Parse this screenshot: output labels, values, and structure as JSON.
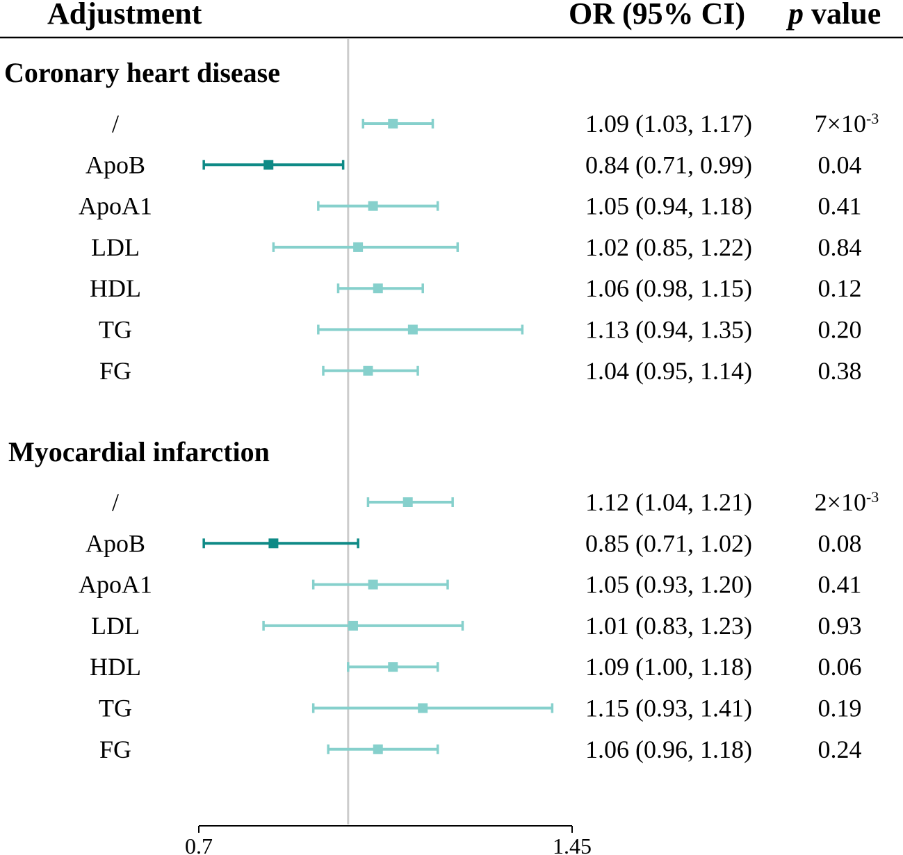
{
  "chart_data": {
    "type": "forest",
    "header": {
      "adjustment": "Adjustment",
      "or_ci": "OR (95% CI)",
      "p_italic": "p",
      "p_rest": " value"
    },
    "xlim": [
      0.7,
      1.45
    ],
    "reference_line": 1.0,
    "x_ticks": [
      "0.7",
      "1.45"
    ],
    "colors": {
      "significant": "#0e8a86",
      "nonsignificant": "#86d0cc",
      "reference": "#cccccc",
      "rule": "#000000"
    },
    "groups": [
      {
        "title": "Coronary heart disease",
        "rows": [
          {
            "label": "/",
            "or": 1.09,
            "lo": 1.03,
            "hi": 1.17,
            "ci_text": "1.09 (1.03, 1.17)",
            "p_base": "7×10",
            "p_exp": "-3",
            "significant": false
          },
          {
            "label": "ApoB",
            "or": 0.84,
            "lo": 0.71,
            "hi": 0.99,
            "ci_text": "0.84 (0.71, 0.99)",
            "p_base": "0.04",
            "p_exp": "",
            "significant": true
          },
          {
            "label": "ApoA1",
            "or": 1.05,
            "lo": 0.94,
            "hi": 1.18,
            "ci_text": "1.05 (0.94, 1.18)",
            "p_base": "0.41",
            "p_exp": "",
            "significant": false
          },
          {
            "label": "LDL",
            "or": 1.02,
            "lo": 0.85,
            "hi": 1.22,
            "ci_text": "1.02 (0.85, 1.22)",
            "p_base": "0.84",
            "p_exp": "",
            "significant": false
          },
          {
            "label": "HDL",
            "or": 1.06,
            "lo": 0.98,
            "hi": 1.15,
            "ci_text": "1.06 (0.98, 1.15)",
            "p_base": "0.12",
            "p_exp": "",
            "significant": false
          },
          {
            "label": "TG",
            "or": 1.13,
            "lo": 0.94,
            "hi": 1.35,
            "ci_text": "1.13 (0.94, 1.35)",
            "p_base": "0.20",
            "p_exp": "",
            "significant": false
          },
          {
            "label": "FG",
            "or": 1.04,
            "lo": 0.95,
            "hi": 1.14,
            "ci_text": "1.04 (0.95, 1.14)",
            "p_base": "0.38",
            "p_exp": "",
            "significant": false
          }
        ]
      },
      {
        "title": "Myocardial infarction",
        "rows": [
          {
            "label": "/",
            "or": 1.12,
            "lo": 1.04,
            "hi": 1.21,
            "ci_text": "1.12 (1.04, 1.21)",
            "p_base": "2×10",
            "p_exp": "-3",
            "significant": false
          },
          {
            "label": "ApoB",
            "or": 0.85,
            "lo": 0.71,
            "hi": 1.02,
            "ci_text": "0.85 (0.71, 1.02)",
            "p_base": "0.08",
            "p_exp": "",
            "significant": true
          },
          {
            "label": "ApoA1",
            "or": 1.05,
            "lo": 0.93,
            "hi": 1.2,
            "ci_text": "1.05 (0.93, 1.20)",
            "p_base": "0.41",
            "p_exp": "",
            "significant": false
          },
          {
            "label": "LDL",
            "or": 1.01,
            "lo": 0.83,
            "hi": 1.23,
            "ci_text": "1.01 (0.83, 1.23)",
            "p_base": "0.93",
            "p_exp": "",
            "significant": false
          },
          {
            "label": "HDL",
            "or": 1.09,
            "lo": 1.0,
            "hi": 1.18,
            "ci_text": "1.09 (1.00, 1.18)",
            "p_base": "0.06",
            "p_exp": "",
            "significant": false
          },
          {
            "label": "TG",
            "or": 1.15,
            "lo": 0.93,
            "hi": 1.41,
            "ci_text": "1.15 (0.93, 1.41)",
            "p_base": "0.19",
            "p_exp": "",
            "significant": false
          },
          {
            "label": "FG",
            "or": 1.06,
            "lo": 0.96,
            "hi": 1.18,
            "ci_text": "1.06 (0.96, 1.18)",
            "p_base": "0.24",
            "p_exp": "",
            "significant": false
          }
        ]
      }
    ]
  }
}
